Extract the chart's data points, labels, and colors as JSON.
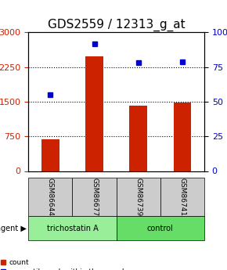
{
  "title": "GDS2559 / 12313_g_at",
  "samples": [
    "GSM86644",
    "GSM86677",
    "GSM86739",
    "GSM86741"
  ],
  "counts": [
    680,
    2480,
    1420,
    1480
  ],
  "percentiles": [
    55,
    92,
    78,
    79
  ],
  "left_ylim": [
    0,
    3000
  ],
  "right_ylim": [
    0,
    100
  ],
  "left_yticks": [
    0,
    750,
    1500,
    2250,
    3000
  ],
  "right_yticks": [
    0,
    25,
    50,
    75,
    100
  ],
  "right_yticklabels": [
    "0",
    "25",
    "50",
    "75",
    "100%"
  ],
  "bar_color": "#cc2200",
  "dot_color": "#0000cc",
  "grid_color": "#000000",
  "agent_groups": [
    {
      "label": "trichostatin A",
      "samples": [
        0,
        1
      ],
      "color": "#99ee99"
    },
    {
      "label": "control",
      "samples": [
        2,
        3
      ],
      "color": "#66dd66"
    }
  ],
  "xlabel_area_color": "#cccccc",
  "bar_width": 0.4,
  "title_fontsize": 11,
  "tick_fontsize": 8,
  "label_fontsize": 8
}
